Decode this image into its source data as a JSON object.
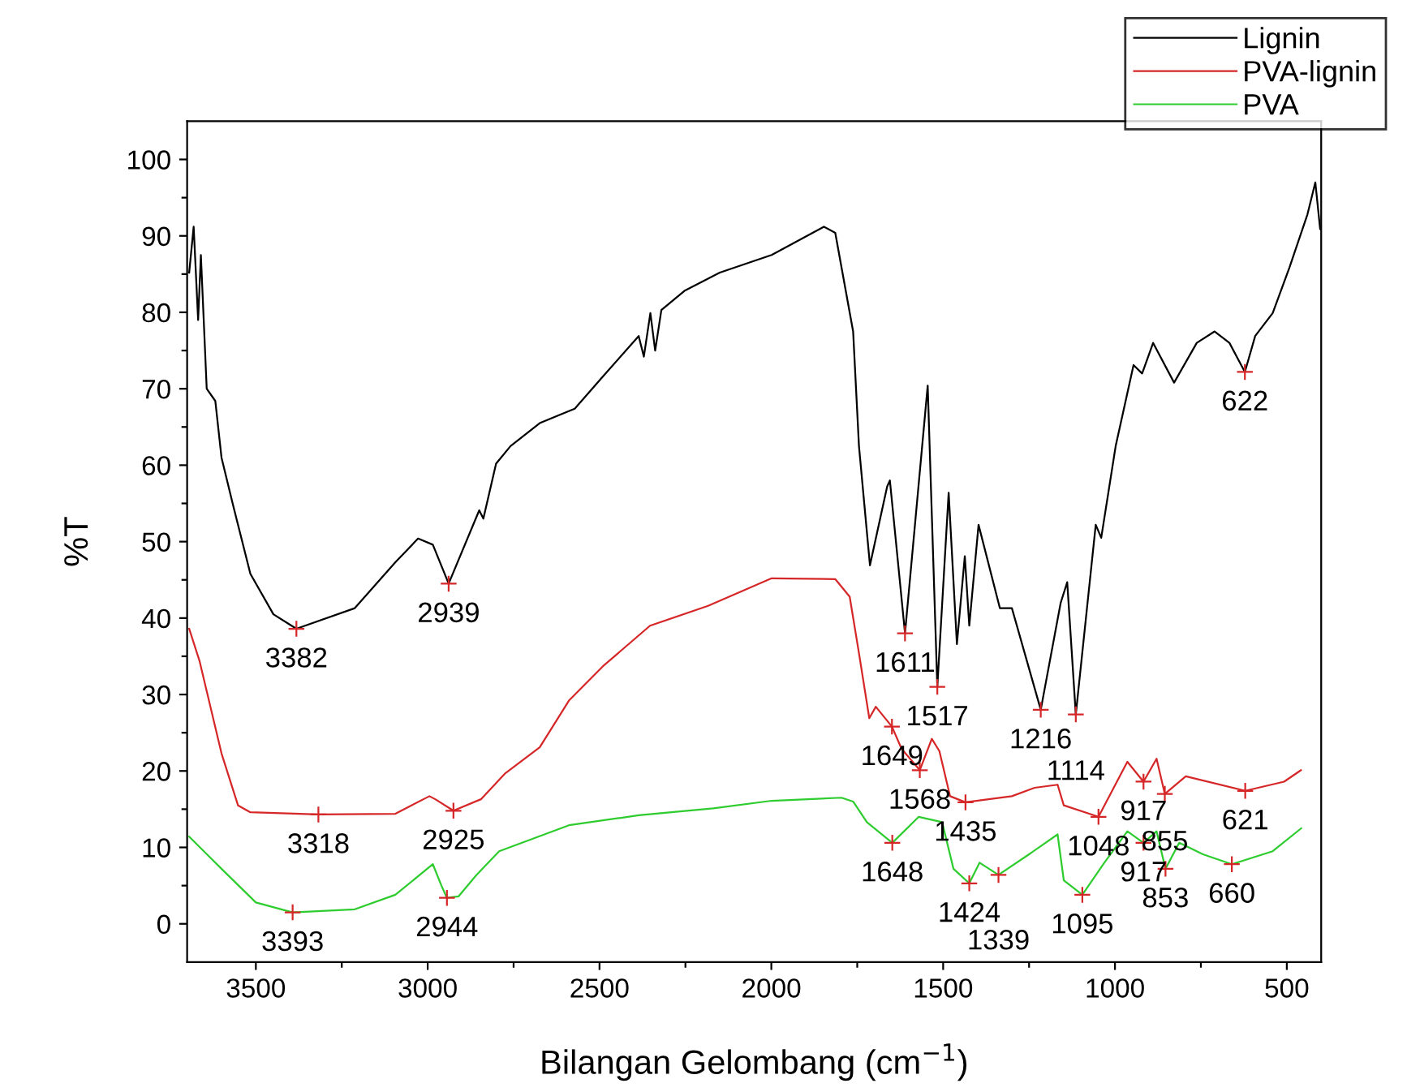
{
  "chart_data": {
    "type": "line",
    "xlabel": "Bilangan Gelombang (cm$^{−1}$)",
    "ylabel": "%T",
    "xlim": [
      3700,
      400
    ],
    "ylim": [
      -5,
      105
    ],
    "xticks": [
      3500,
      {
        "value": 3250,
        "label": null
      },
      3000,
      {
        "value": 2750,
        "label": null
      },
      2500,
      {
        "value": 2250,
        "label": null
      },
      2000,
      {
        "value": 1750,
        "label": null
      },
      1500,
      {
        "value": 1250,
        "label": null
      },
      1000,
      {
        "value": 750,
        "label": null
      },
      500
    ],
    "yticks": [
      0,
      {
        "value": 5,
        "label": null
      },
      10,
      {
        "value": 15,
        "label": null
      },
      20,
      {
        "value": 25,
        "label": null
      },
      30,
      {
        "value": 35,
        "label": null
      },
      40,
      {
        "value": 45,
        "label": null
      },
      50,
      {
        "value": 55,
        "label": null
      },
      60,
      {
        "value": 65,
        "label": null
      },
      70,
      {
        "value": 75,
        "label": null
      },
      80,
      {
        "value": 85,
        "label": null
      },
      90,
      {
        "value": 95,
        "label": null
      },
      100
    ],
    "grid": false,
    "legend": "top right",
    "marker": "none",
    "line_style": "solid",
    "series": [
      {
        "name": "Lignin",
        "color": "#000000",
        "x": [
          3694,
          3681,
          3668,
          3660,
          3643,
          3618,
          3600,
          3567,
          3516,
          3449,
          3382,
          3212,
          3094,
          3028,
          2985,
          2939,
          2850,
          2838,
          2801,
          2759,
          2674,
          2572,
          2490,
          2386,
          2371,
          2352,
          2338,
          2320,
          2253,
          2150,
          1999,
          1847,
          1814,
          1762,
          1745,
          1713,
          1663,
          1655,
          1611,
          1545,
          1517,
          1484,
          1460,
          1437,
          1424,
          1397,
          1335,
          1300,
          1216,
          1158,
          1139,
          1114,
          1056,
          1040,
          998,
          946,
          921,
          889,
          828,
          762,
          710,
          667,
          622,
          592,
          541,
          492,
          440,
          417,
          403
        ],
        "values": [
          85.2,
          91.2,
          79,
          87.5,
          70,
          68.4,
          61,
          54.9,
          45.8,
          40.5,
          38.6,
          41.3,
          47.3,
          50.4,
          49.6,
          44.5,
          54.1,
          53,
          60.2,
          62.5,
          65.5,
          67.4,
          71.6,
          76.9,
          74.2,
          79.9,
          75,
          80.3,
          82.8,
          85.2,
          87.5,
          91.2,
          90.4,
          77.5,
          62.5,
          46.9,
          57.2,
          58,
          38,
          70.4,
          31,
          56.4,
          36.6,
          48.1,
          39,
          52.2,
          41.3,
          41.3,
          28,
          42,
          44.7,
          27.4,
          52.2,
          50.5,
          62.5,
          73.1,
          72,
          76,
          70.8,
          76,
          77.5,
          76,
          72.2,
          76.9,
          79.9,
          85.9,
          92.8,
          97,
          90.9
        ]
      },
      {
        "name": "PVA-lignin",
        "color": "#d62728",
        "x": [
          3694,
          3664,
          3600,
          3552,
          3516,
          3318,
          3094,
          2995,
          2978,
          2925,
          2845,
          2774,
          2674,
          2589,
          2490,
          2353,
          2184,
          1999,
          1814,
          1772,
          1745,
          1715,
          1696,
          1649,
          1621,
          1568,
          1533,
          1511,
          1480,
          1435,
          1300,
          1234,
          1167,
          1149,
          1048,
          964,
          917,
          879,
          855,
          794,
          621,
          508,
          459
        ],
        "values": [
          38.6,
          34.4,
          22.3,
          15.5,
          14.6,
          14.3,
          14.4,
          16.7,
          16.3,
          14.8,
          16.3,
          19.7,
          23.1,
          29.2,
          33.7,
          39,
          41.6,
          45.2,
          45.1,
          42.8,
          35.4,
          26.9,
          28.4,
          25.8,
          22.9,
          20.1,
          24.2,
          22.6,
          16.7,
          15.9,
          16.7,
          17.8,
          18.2,
          15.5,
          14,
          21.2,
          18.6,
          21.6,
          17,
          19.3,
          17.4,
          18.6,
          20.1
        ]
      },
      {
        "name": "PVA",
        "color": "#2ecc2e",
        "x": [
          3694,
          3600,
          3500,
          3393,
          3212,
          3094,
          2985,
          2960,
          2944,
          2910,
          2858,
          2792,
          2589,
          2386,
          2169,
          1999,
          1796,
          1762,
          1722,
          1648,
          1571,
          1503,
          1470,
          1424,
          1394,
          1339,
          1250,
          1167,
          1149,
          1095,
          1031,
          964,
          917,
          879,
          853,
          813,
          744,
          660,
          541,
          458
        ],
        "values": [
          11.4,
          7.2,
          2.8,
          1.5,
          1.9,
          3.8,
          7.8,
          5,
          3.4,
          3.6,
          6.4,
          9.5,
          12.9,
          14.2,
          15.1,
          16.1,
          16.5,
          16,
          13.3,
          10.6,
          14,
          13.3,
          7.2,
          5.3,
          8,
          6.4,
          9.1,
          11.7,
          5.7,
          3.8,
          8,
          12.1,
          10.6,
          12.1,
          7.2,
          10.6,
          9.1,
          7.8,
          9.5,
          12.5
        ]
      }
    ],
    "annotations": [
      {
        "text": "3382",
        "x": 3382,
        "y": 38.6
      },
      {
        "text": "2939",
        "x": 2939,
        "y": 44.5
      },
      {
        "text": "1611",
        "x": 1611,
        "y": 38
      },
      {
        "text": "1517",
        "x": 1517,
        "y": 31
      },
      {
        "text": "1216",
        "x": 1216,
        "y": 28
      },
      {
        "text": "1114",
        "x": 1114,
        "y": 27.4
      },
      {
        "text": "622",
        "x": 622,
        "y": 72.2
      },
      {
        "text": "3318",
        "x": 3318,
        "y": 14.3
      },
      {
        "text": "2925",
        "x": 2925,
        "y": 14.8
      },
      {
        "text": "1649",
        "x": 1649,
        "y": 25.8
      },
      {
        "text": "1568",
        "x": 1568,
        "y": 20.1
      },
      {
        "text": "1435",
        "x": 1435,
        "y": 15.9
      },
      {
        "text": "1048",
        "x": 1048,
        "y": 14
      },
      {
        "text": "917",
        "x": 917,
        "y": 18.6
      },
      {
        "text": "855",
        "x": 855,
        "y": 17
      },
      {
        "text": "621",
        "x": 621,
        "y": 17.4
      },
      {
        "text": "3393",
        "x": 3393,
        "y": 1.5
      },
      {
        "text": "2944",
        "x": 2944,
        "y": 3.4
      },
      {
        "text": "1648",
        "x": 1648,
        "y": 10.6
      },
      {
        "text": "1424",
        "x": 1424,
        "y": 5.3
      },
      {
        "text": "1339",
        "x": 1339,
        "y": 6.4
      },
      {
        "text": "1095",
        "x": 1095,
        "y": 3.8
      },
      {
        "text": "917",
        "x": 917,
        "y": 10.6
      },
      {
        "text": "853",
        "x": 853,
        "y": 7.2
      },
      {
        "text": "660",
        "x": 660,
        "y": 7.8
      }
    ]
  }
}
